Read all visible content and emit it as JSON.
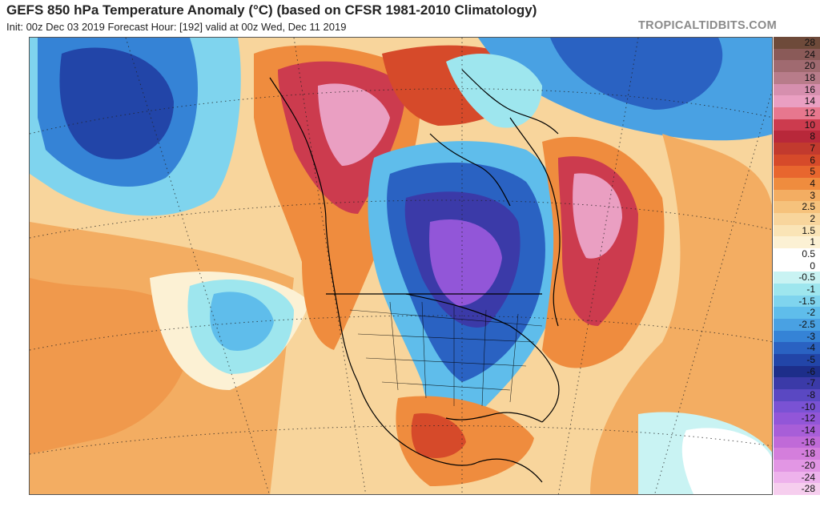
{
  "header": {
    "title": "GEFS 850 hPa Temperature Anomaly (°C) (based on CFSR 1981-2010 Climatology)",
    "subtitle": "Init: 00z Dec 03 2019   Forecast Hour: [192]   valid at 00z Wed, Dec 11 2019",
    "brand": "TROPICALTIDBITS.COM"
  },
  "colorbar": {
    "labels": [
      "28",
      "24",
      "20",
      "18",
      "16",
      "14",
      "12",
      "10",
      "8",
      "7",
      "6",
      "5",
      "4",
      "3",
      "2.5",
      "2",
      "1.5",
      "1",
      "0.5",
      "0",
      "-0.5",
      "-1",
      "-1.5",
      "-2",
      "-2.5",
      "-3",
      "-4",
      "-5",
      "-6",
      "-7",
      "-8",
      "-10",
      "-12",
      "-14",
      "-16",
      "-18",
      "-20",
      "-24",
      "-28"
    ],
    "colors": [
      "#6e4a3a",
      "#8a5a58",
      "#a06a70",
      "#b87c8a",
      "#d68fae",
      "#ea9fc2",
      "#e7778e",
      "#cc3b4e",
      "#b8283a",
      "#c23a2e",
      "#d64a2a",
      "#e8662e",
      "#ef8c3e",
      "#f3ad62",
      "#f6c27c",
      "#f8d59c",
      "#fae4b6",
      "#fcf1d4",
      "#ffffff",
      "#ffffff",
      "#c9f3f3",
      "#9ee6ee",
      "#7fd4ee",
      "#5fbdeb",
      "#49a1e3",
      "#3583d6",
      "#2a62c2",
      "#2245a8",
      "#1d2e8a",
      "#3b3aa8",
      "#5a48c2",
      "#7a52d4",
      "#9256d8",
      "#a85ed8",
      "#c06ad8",
      "#d47edc",
      "#e296e4",
      "#eeb2ec",
      "#f6ceee"
    ]
  },
  "map": {
    "description_type": "temperature-anomaly-field",
    "colors": {
      "ocean_neutral": "#fcf1d4",
      "warm_light": "#f6c27c",
      "warm_mid": "#ef8c3e",
      "warm_strong": "#d64a2a",
      "warm_extreme": "#b8283a",
      "warm_pink": "#ea9fc2",
      "cold_light": "#9ee6ee",
      "cold_mid": "#49a1e3",
      "cold_strong": "#2a62c2",
      "cold_deep": "#1d2e8a",
      "cold_purple": "#9256d8",
      "neutral_white": "#ffffff",
      "border_line": "#000000"
    }
  }
}
